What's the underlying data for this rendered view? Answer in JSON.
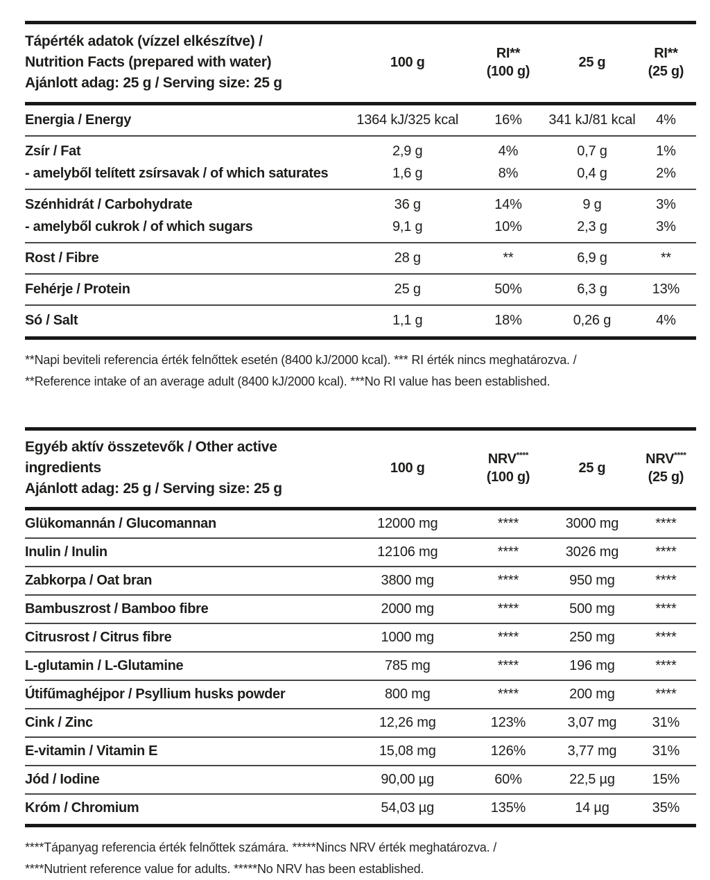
{
  "colors": {
    "background": "#ffffff",
    "text": "#1d1d1b",
    "rule_thick": "#181818",
    "rule_thin": "#454545"
  },
  "nutrition_table": {
    "title": "Tápérték adatok (vízzel elkészítve) /\nNutrition Facts (prepared with water)\nAjánlott adag: 25 g / Serving size: 25 g",
    "columns": [
      {
        "base": "100 g",
        "sup": "",
        "line2": ""
      },
      {
        "base": "RI**",
        "sup": "",
        "line2": "(100 g)"
      },
      {
        "base": "25 g",
        "sup": "",
        "line2": ""
      },
      {
        "base": "RI**",
        "sup": "",
        "line2": "(25 g)"
      }
    ],
    "rows": [
      {
        "label": "Energia / Energy",
        "c1": "1364 kJ/325 kcal",
        "c2": "16%",
        "c3": "341 kJ/81 kcal",
        "c4": "4%",
        "sep": true
      },
      {
        "label": "Zsír / Fat",
        "c1": "2,9 g",
        "c2": "4%",
        "c3": "0,7 g",
        "c4": "1%",
        "sep": false
      },
      {
        "label": "- amelyből telített zsírsavak / of which saturates",
        "c1": "1,6 g",
        "c2": "8%",
        "c3": "0,4 g",
        "c4": "2%",
        "sep": true
      },
      {
        "label": "Szénhidrát / Carbohydrate",
        "c1": "36 g",
        "c2": "14%",
        "c3": "9 g",
        "c4": "3%",
        "sep": false
      },
      {
        "label": "- amelyből cukrok / of which sugars",
        "c1": "9,1 g",
        "c2": "10%",
        "c3": "2,3 g",
        "c4": "3%",
        "sep": true
      },
      {
        "label": "Rost / Fibre",
        "c1": "28 g",
        "c2": "**",
        "c3": "6,9 g",
        "c4": "**",
        "sep": true
      },
      {
        "label": "Fehérje / Protein",
        "c1": "25 g",
        "c2": "50%",
        "c3": "6,3 g",
        "c4": "13%",
        "sep": true
      },
      {
        "label": "Só / Salt",
        "c1": "1,1 g",
        "c2": "18%",
        "c3": "0,26 g",
        "c4": "4%",
        "sep": false
      }
    ]
  },
  "footnote_ri": "**Napi beviteli referencia érték felnőttek esetén (8400 kJ/2000 kcal). *** RI érték nincs meghatározva. /\n**Reference intake of an average adult (8400 kJ/2000 kcal). ***No RI value has been established.",
  "active_ingredients_table": {
    "title": "Egyéb aktív összetevők / Other active ingredients\nAjánlott adag: 25 g / Serving size: 25 g",
    "columns": [
      {
        "base": "100 g",
        "sup": "",
        "line2": ""
      },
      {
        "base": "NRV",
        "sup": "****",
        "line2": "(100 g)"
      },
      {
        "base": "25 g",
        "sup": "",
        "line2": ""
      },
      {
        "base": "NRV",
        "sup": "****",
        "line2": "(25 g)"
      }
    ],
    "rows": [
      {
        "label": "Glükomannán / Glucomannan",
        "c1": "12000 mg",
        "c2": "****",
        "c3": "3000 mg",
        "c4": "****",
        "sep": true
      },
      {
        "label": "Inulin / Inulin",
        "c1": "12106 mg",
        "c2": "****",
        "c3": "3026 mg",
        "c4": "****",
        "sep": true
      },
      {
        "label": "Zabkorpa / Oat bran",
        "c1": "3800 mg",
        "c2": "****",
        "c3": "950 mg",
        "c4": "****",
        "sep": true
      },
      {
        "label": "Bambuszrost / Bamboo fibre",
        "c1": "2000 mg",
        "c2": "****",
        "c3": "500 mg",
        "c4": "****",
        "sep": true
      },
      {
        "label": "Citrusrost / Citrus fibre",
        "c1": "1000 mg",
        "c2": "****",
        "c3": "250 mg",
        "c4": "****",
        "sep": true
      },
      {
        "label": "L-glutamin / L-Glutamine",
        "c1": "785 mg",
        "c2": "****",
        "c3": "196 mg",
        "c4": "****",
        "sep": true
      },
      {
        "label": "Útifűmaghéjpor / Psyllium husks powder",
        "c1": "800 mg",
        "c2": "****",
        "c3": "200 mg",
        "c4": "****",
        "sep": true
      },
      {
        "label": "Cink / Zinc",
        "c1": "12,26 mg",
        "c2": "123%",
        "c3": "3,07 mg",
        "c4": "31%",
        "sep": true
      },
      {
        "label": "E-vitamin / Vitamin E",
        "c1": "15,08 mg",
        "c2": "126%",
        "c3": "3,77 mg",
        "c4": "31%",
        "sep": true
      },
      {
        "label": "Jód / Iodine",
        "c1": "90,00 µg",
        "c2": "60%",
        "c3": "22,5 µg",
        "c4": "15%",
        "sep": true
      },
      {
        "label": "Króm / Chromium",
        "c1": "54,03 µg",
        "c2": "135%",
        "c3": "14 µg",
        "c4": "35%",
        "sep": false
      }
    ]
  },
  "footnote_nrv": "****Tápanyag referencia érték felnőttek számára. *****Nincs NRV érték meghatározva. /\n****Nutrient reference value for adults. *****No NRV has been established."
}
